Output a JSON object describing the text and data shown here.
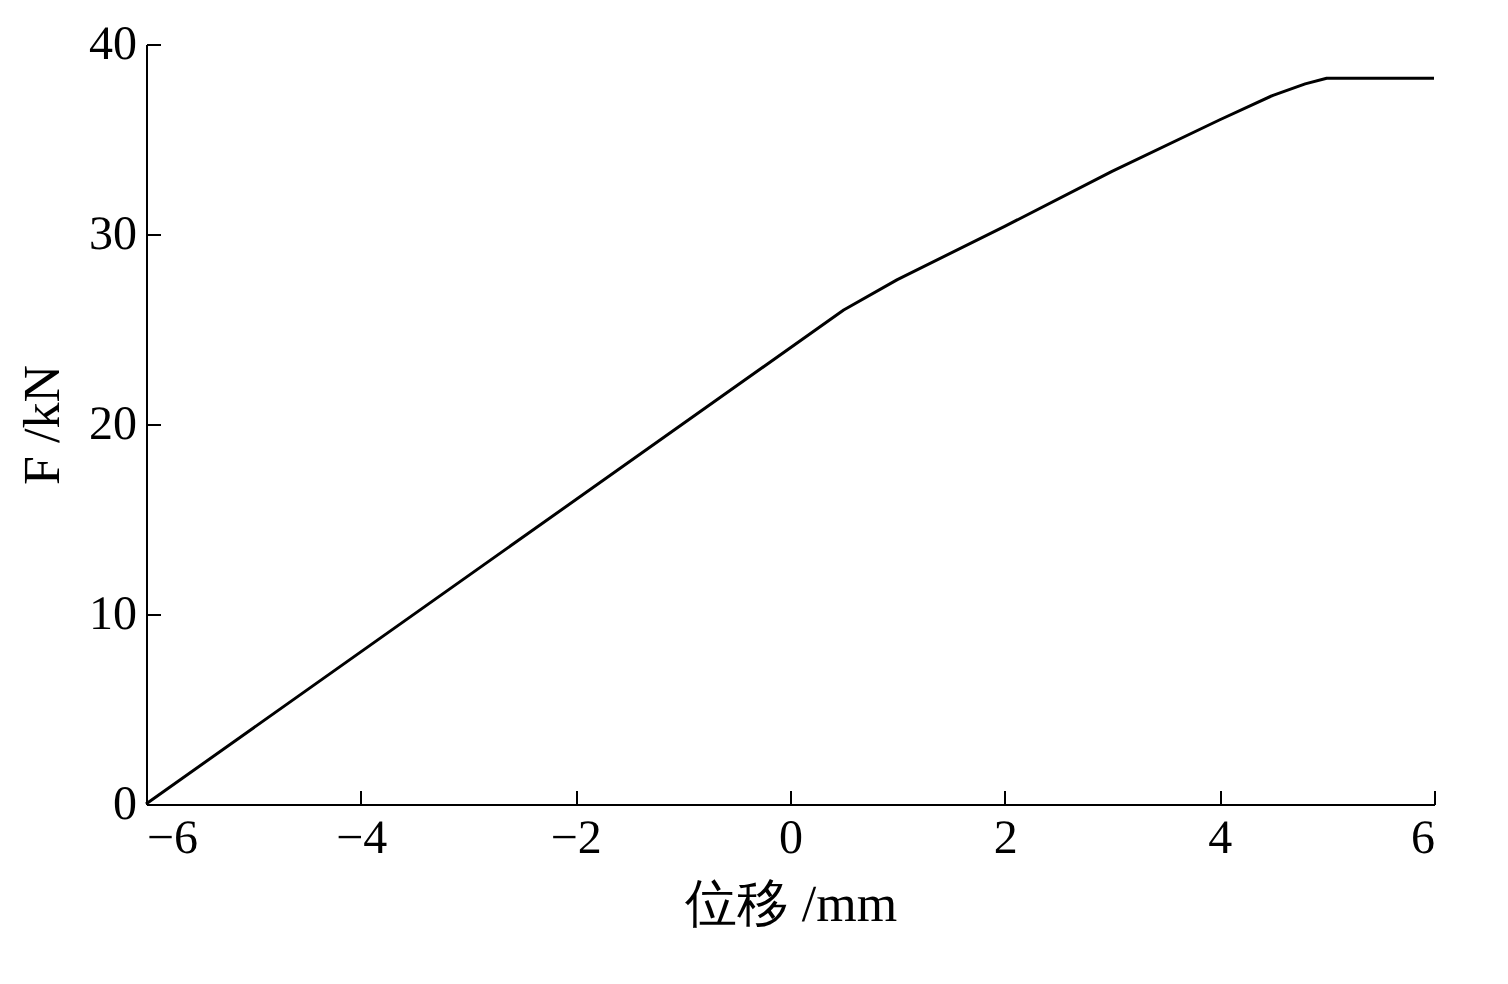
{
  "chart_data": {
    "type": "line",
    "xlabel": "位移 /mm",
    "ylabel": "F /kN",
    "x": [
      -6,
      0.5,
      1,
      2,
      3,
      4,
      4.5,
      4.8,
      5,
      6
    ],
    "series": [
      {
        "color": "#000000",
        "values": [
          0,
          26,
          27.6,
          30.4,
          33.3,
          36,
          37.3,
          37.9,
          38.2,
          38.2
        ]
      }
    ],
    "xlim": [
      -6,
      6
    ],
    "xticks": [
      -6,
      -4,
      -2,
      0,
      2,
      4,
      6
    ],
    "ylim": [
      0,
      40
    ],
    "yticks": [
      0,
      10,
      20,
      30,
      40
    ],
    "grid": false,
    "legend": false
  }
}
